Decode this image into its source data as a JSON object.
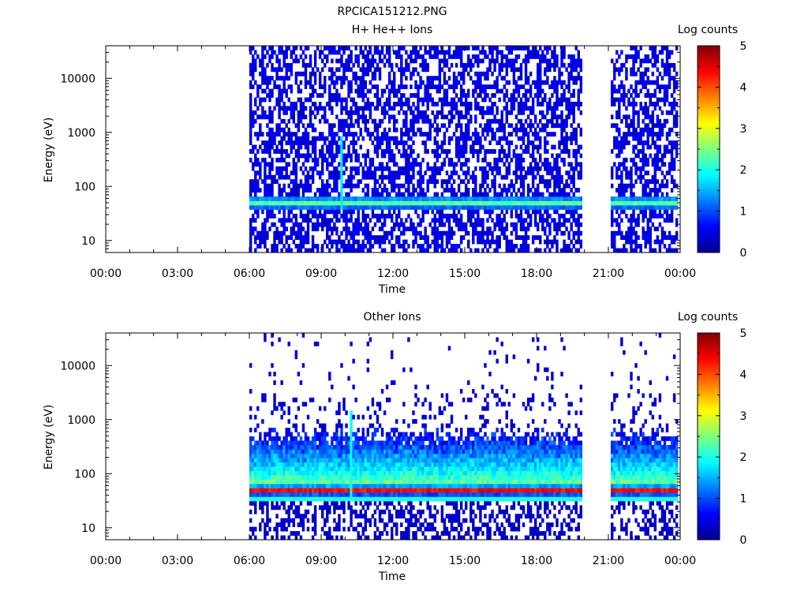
{
  "figure_title": "RPCICA151212.PNG",
  "chart_data": [
    {
      "type": "heatmap",
      "title": "H+ He++ Ions",
      "xlabel": "Time",
      "ylabel": "Energy (eV)",
      "x_ticks": [
        "00:00",
        "03:00",
        "06:00",
        "09:00",
        "12:00",
        "15:00",
        "18:00",
        "21:00",
        "00:00"
      ],
      "x_range_hours": [
        0,
        24
      ],
      "y_scale": "log",
      "y_ticks": [
        10,
        100,
        1000,
        10000
      ],
      "y_tick_labels": [
        "10",
        "100",
        "1000",
        "10000"
      ],
      "y_range": [
        6,
        40000
      ],
      "colorbar": {
        "label": "Log counts",
        "range": [
          0,
          5
        ],
        "ticks": [
          "0",
          "1",
          "2",
          "3",
          "4",
          "5"
        ]
      },
      "data_intervals_hours": [
        [
          6.0,
          19.9
        ],
        [
          21.1,
          23.9
        ]
      ],
      "features": {
        "background_log_counts": 0.3,
        "band_center_energy_eV": 50,
        "band_peak_log_counts": 2.3,
        "burst_time_hours": 9.8,
        "burst_max_energy_eV": 900
      }
    },
    {
      "type": "heatmap",
      "title": "Other Ions",
      "xlabel": "Time",
      "ylabel": "Energy (eV)",
      "x_ticks": [
        "00:00",
        "03:00",
        "06:00",
        "09:00",
        "12:00",
        "15:00",
        "18:00",
        "21:00",
        "00:00"
      ],
      "x_range_hours": [
        0,
        24
      ],
      "y_scale": "log",
      "y_ticks": [
        10,
        100,
        1000,
        10000
      ],
      "y_tick_labels": [
        "10",
        "100",
        "1000",
        "10000"
      ],
      "y_range": [
        6,
        40000
      ],
      "colorbar": {
        "label": "Log counts",
        "range": [
          0,
          5
        ],
        "ticks": [
          "0",
          "1",
          "2",
          "3",
          "4",
          "5"
        ]
      },
      "data_intervals_hours": [
        [
          6.0,
          19.9
        ],
        [
          21.1,
          23.9
        ]
      ],
      "features": {
        "band_center_energy_eV": 50,
        "band_peak_log_counts": 4.4,
        "line_energy_eV": 33,
        "line_log_counts": 2.0,
        "tail_max_energy_eV": 500,
        "burst_time_hours": 10.2,
        "burst_max_energy_eV": 1500
      }
    }
  ]
}
